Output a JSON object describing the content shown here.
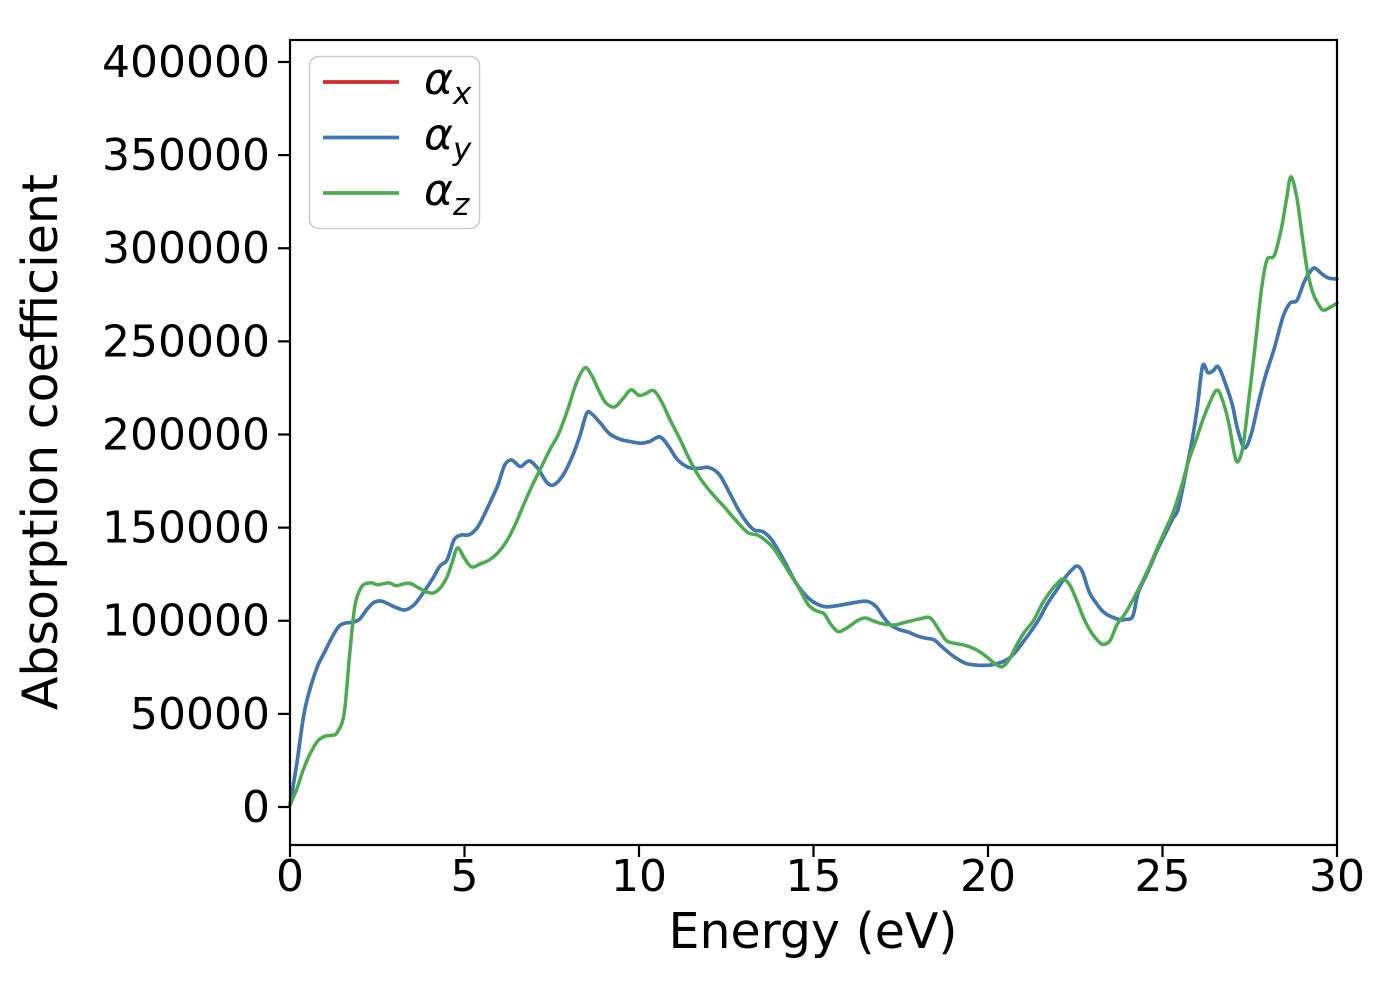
{
  "figure": {
    "background": "#ffffff",
    "axes_color": "#000000"
  },
  "chart_data": {
    "type": "line",
    "title": "",
    "xlabel": "Energy (eV)",
    "ylabel": "Absorption coefficient",
    "xlim": [
      0,
      30
    ],
    "ylim": [
      -20400,
      411800
    ],
    "x_ticks": [
      0,
      5,
      10,
      15,
      20,
      25,
      30
    ],
    "y_ticks": [
      0,
      50000,
      100000,
      150000,
      200000,
      250000,
      300000,
      350000,
      400000
    ],
    "grid": false,
    "legend": {
      "position": "upper-left",
      "frame": true,
      "entries": [
        {
          "symbol": "α",
          "subscript": "x",
          "color": "#d62b2e"
        },
        {
          "symbol": "α",
          "subscript": "y",
          "color": "#3b78b5"
        },
        {
          "symbol": "α",
          "subscript": "z",
          "color": "#4cab51"
        }
      ]
    },
    "series": [
      {
        "name": "alpha_x",
        "legend_symbol": "α",
        "legend_subscript": "x",
        "color": "#d62b2e",
        "hidden_behind": "alpha_y",
        "points": "alpha_y"
      },
      {
        "name": "alpha_y",
        "legend_symbol": "α",
        "legend_subscript": "y",
        "color": "#3b78b5",
        "points": [
          [
            0,
            1500
          ],
          [
            0.2,
            24000
          ],
          [
            0.4,
            50000
          ],
          [
            0.6,
            65000
          ],
          [
            0.8,
            76000
          ],
          [
            1.0,
            83500
          ],
          [
            1.2,
            91000
          ],
          [
            1.4,
            97000
          ],
          [
            1.6,
            98800
          ],
          [
            1.8,
            99200
          ],
          [
            2.0,
            101000
          ],
          [
            2.2,
            106000
          ],
          [
            2.4,
            109800
          ],
          [
            2.6,
            110600
          ],
          [
            2.8,
            109200
          ],
          [
            3.05,
            107000
          ],
          [
            3.3,
            105800
          ],
          [
            3.55,
            108500
          ],
          [
            3.8,
            114500
          ],
          [
            4.1,
            123000
          ],
          [
            4.3,
            129500
          ],
          [
            4.5,
            132600
          ],
          [
            4.7,
            143400
          ],
          [
            4.9,
            146000
          ],
          [
            5.15,
            146300
          ],
          [
            5.4,
            151000
          ],
          [
            5.7,
            162200
          ],
          [
            5.95,
            172500
          ],
          [
            6.15,
            183500
          ],
          [
            6.35,
            186300
          ],
          [
            6.6,
            182800
          ],
          [
            6.85,
            185800
          ],
          [
            7.1,
            181800
          ],
          [
            7.35,
            174500
          ],
          [
            7.55,
            172900
          ],
          [
            7.8,
            177500
          ],
          [
            8.05,
            186500
          ],
          [
            8.3,
            199000
          ],
          [
            8.5,
            211300
          ],
          [
            8.65,
            211000
          ],
          [
            8.9,
            206000
          ],
          [
            9.15,
            200500
          ],
          [
            9.45,
            197500
          ],
          [
            9.75,
            196200
          ],
          [
            10.05,
            195300
          ],
          [
            10.3,
            196200
          ],
          [
            10.6,
            198700
          ],
          [
            10.85,
            193500
          ],
          [
            11.1,
            186500
          ],
          [
            11.4,
            182500
          ],
          [
            11.7,
            181800
          ],
          [
            12.0,
            182300
          ],
          [
            12.3,
            178500
          ],
          [
            12.6,
            168500
          ],
          [
            12.85,
            159500
          ],
          [
            13.1,
            152500
          ],
          [
            13.3,
            148700
          ],
          [
            13.55,
            147800
          ],
          [
            13.8,
            143500
          ],
          [
            14.1,
            134200
          ],
          [
            14.5,
            120300
          ],
          [
            14.85,
            112200
          ],
          [
            15.1,
            109000
          ],
          [
            15.35,
            107500
          ],
          [
            15.65,
            108000
          ],
          [
            15.95,
            109000
          ],
          [
            16.25,
            110000
          ],
          [
            16.55,
            110400
          ],
          [
            16.8,
            107500
          ],
          [
            17.0,
            102000
          ],
          [
            17.2,
            97800
          ],
          [
            17.45,
            95300
          ],
          [
            17.7,
            94000
          ],
          [
            17.95,
            92000
          ],
          [
            18.2,
            90700
          ],
          [
            18.45,
            89800
          ],
          [
            18.65,
            86500
          ],
          [
            18.9,
            82500
          ],
          [
            19.1,
            79800
          ],
          [
            19.35,
            77200
          ],
          [
            19.6,
            76300
          ],
          [
            19.85,
            76000
          ],
          [
            20.1,
            76300
          ],
          [
            20.35,
            77500
          ],
          [
            20.6,
            79800
          ],
          [
            20.8,
            83500
          ],
          [
            21.0,
            88500
          ],
          [
            21.2,
            93500
          ],
          [
            21.45,
            100500
          ],
          [
            21.7,
            109000
          ],
          [
            21.95,
            116000
          ],
          [
            22.2,
            123000
          ],
          [
            22.4,
            127300
          ],
          [
            22.55,
            129400
          ],
          [
            22.7,
            126500
          ],
          [
            22.9,
            115500
          ],
          [
            23.1,
            109500
          ],
          [
            23.3,
            104800
          ],
          [
            23.55,
            102000
          ],
          [
            23.8,
            100500
          ],
          [
            23.95,
            100700
          ],
          [
            24.15,
            102500
          ],
          [
            24.3,
            114900
          ],
          [
            24.55,
            125000
          ],
          [
            24.85,
            138000
          ],
          [
            25.1,
            147500
          ],
          [
            25.3,
            155000
          ],
          [
            25.45,
            160000
          ],
          [
            25.65,
            178000
          ],
          [
            25.85,
            197000
          ],
          [
            26.0,
            215000
          ],
          [
            26.15,
            236800
          ],
          [
            26.3,
            233200
          ],
          [
            26.45,
            234200
          ],
          [
            26.6,
            236300
          ],
          [
            26.8,
            227500
          ],
          [
            27.0,
            216000
          ],
          [
            27.15,
            203000
          ],
          [
            27.35,
            192800
          ],
          [
            27.55,
            200800
          ],
          [
            27.75,
            217000
          ],
          [
            27.95,
            231500
          ],
          [
            28.2,
            246000
          ],
          [
            28.45,
            263000
          ],
          [
            28.65,
            270500
          ],
          [
            28.85,
            272000
          ],
          [
            29.05,
            281500
          ],
          [
            29.2,
            286500
          ],
          [
            29.35,
            289400
          ],
          [
            29.55,
            286500
          ],
          [
            29.75,
            284000
          ],
          [
            30,
            283500
          ]
        ]
      },
      {
        "name": "alpha_z",
        "legend_symbol": "α",
        "legend_subscript": "z",
        "color": "#4cab51",
        "points": [
          [
            0,
            1000
          ],
          [
            0.2,
            10000
          ],
          [
            0.4,
            21000
          ],
          [
            0.6,
            29500
          ],
          [
            0.8,
            35500
          ],
          [
            1.0,
            38000
          ],
          [
            1.2,
            38500
          ],
          [
            1.35,
            40000
          ],
          [
            1.55,
            50000
          ],
          [
            1.7,
            80000
          ],
          [
            1.85,
            107000
          ],
          [
            2.0,
            116500
          ],
          [
            2.15,
            119800
          ],
          [
            2.35,
            120300
          ],
          [
            2.5,
            119300
          ],
          [
            2.7,
            120000
          ],
          [
            2.85,
            120300
          ],
          [
            3.05,
            118800
          ],
          [
            3.25,
            119800
          ],
          [
            3.45,
            120000
          ],
          [
            3.65,
            118000
          ],
          [
            3.9,
            115500
          ],
          [
            4.1,
            114900
          ],
          [
            4.3,
            117500
          ],
          [
            4.5,
            123500
          ],
          [
            4.65,
            131500
          ],
          [
            4.8,
            139100
          ],
          [
            5.0,
            133500
          ],
          [
            5.2,
            128900
          ],
          [
            5.45,
            130500
          ],
          [
            5.7,
            132500
          ],
          [
            5.95,
            136400
          ],
          [
            6.2,
            142500
          ],
          [
            6.45,
            151500
          ],
          [
            6.7,
            162500
          ],
          [
            6.95,
            173000
          ],
          [
            7.2,
            182500
          ],
          [
            7.45,
            192000
          ],
          [
            7.7,
            200500
          ],
          [
            7.95,
            213000
          ],
          [
            8.2,
            227500
          ],
          [
            8.45,
            235800
          ],
          [
            8.65,
            231500
          ],
          [
            8.85,
            223500
          ],
          [
            9.05,
            217000
          ],
          [
            9.3,
            214800
          ],
          [
            9.55,
            219500
          ],
          [
            9.77,
            224000
          ],
          [
            10.0,
            221000
          ],
          [
            10.2,
            222000
          ],
          [
            10.42,
            223500
          ],
          [
            10.65,
            217500
          ],
          [
            10.9,
            207500
          ],
          [
            11.15,
            198500
          ],
          [
            11.45,
            186500
          ],
          [
            11.7,
            178000
          ],
          [
            11.95,
            171500
          ],
          [
            12.2,
            166000
          ],
          [
            12.45,
            161000
          ],
          [
            12.7,
            155500
          ],
          [
            12.95,
            150300
          ],
          [
            13.15,
            147000
          ],
          [
            13.4,
            146000
          ],
          [
            13.6,
            143500
          ],
          [
            13.85,
            139000
          ],
          [
            14.1,
            132000
          ],
          [
            14.35,
            124500
          ],
          [
            14.6,
            117000
          ],
          [
            14.85,
            108500
          ],
          [
            15.1,
            105200
          ],
          [
            15.3,
            103800
          ],
          [
            15.5,
            98000
          ],
          [
            15.7,
            94200
          ],
          [
            15.9,
            95500
          ],
          [
            16.1,
            98000
          ],
          [
            16.3,
            100500
          ],
          [
            16.5,
            101500
          ],
          [
            16.7,
            100000
          ],
          [
            16.9,
            98700
          ],
          [
            17.1,
            98000
          ],
          [
            17.35,
            97800
          ],
          [
            17.6,
            99000
          ],
          [
            17.85,
            100200
          ],
          [
            18.1,
            101200
          ],
          [
            18.35,
            101500
          ],
          [
            18.6,
            95000
          ],
          [
            18.8,
            89500
          ],
          [
            19.0,
            88000
          ],
          [
            19.25,
            87200
          ],
          [
            19.5,
            85800
          ],
          [
            19.75,
            83500
          ],
          [
            20.0,
            80000
          ],
          [
            20.2,
            77000
          ],
          [
            20.4,
            75300
          ],
          [
            20.6,
            79000
          ],
          [
            20.85,
            88000
          ],
          [
            21.05,
            94000
          ],
          [
            21.3,
            100000
          ],
          [
            21.55,
            109000
          ],
          [
            21.8,
            116000
          ],
          [
            22.0,
            120300
          ],
          [
            22.15,
            122400
          ],
          [
            22.35,
            119000
          ],
          [
            22.55,
            110500
          ],
          [
            22.75,
            101000
          ],
          [
            22.95,
            94000
          ],
          [
            23.15,
            89300
          ],
          [
            23.3,
            87300
          ],
          [
            23.5,
            89500
          ],
          [
            23.7,
            98000
          ],
          [
            23.95,
            104500
          ],
          [
            24.3,
            116500
          ],
          [
            24.6,
            128000
          ],
          [
            24.85,
            139100
          ],
          [
            25.1,
            149500
          ],
          [
            25.3,
            158000
          ],
          [
            25.55,
            172500
          ],
          [
            25.75,
            186000
          ],
          [
            25.95,
            196500
          ],
          [
            26.15,
            207500
          ],
          [
            26.35,
            217000
          ],
          [
            26.55,
            223700
          ],
          [
            26.7,
            219500
          ],
          [
            26.9,
            206000
          ],
          [
            27.05,
            190500
          ],
          [
            27.15,
            185300
          ],
          [
            27.3,
            193000
          ],
          [
            27.45,
            215000
          ],
          [
            27.65,
            247000
          ],
          [
            27.85,
            280000
          ],
          [
            28.0,
            294000
          ],
          [
            28.2,
            296000
          ],
          [
            28.4,
            310000
          ],
          [
            28.55,
            326000
          ],
          [
            28.68,
            338300
          ],
          [
            28.85,
            327000
          ],
          [
            29.0,
            307000
          ],
          [
            29.15,
            288000
          ],
          [
            29.3,
            276500
          ],
          [
            29.45,
            270500
          ],
          [
            29.6,
            266800
          ],
          [
            29.8,
            268300
          ],
          [
            30,
            270500
          ]
        ]
      }
    ]
  }
}
